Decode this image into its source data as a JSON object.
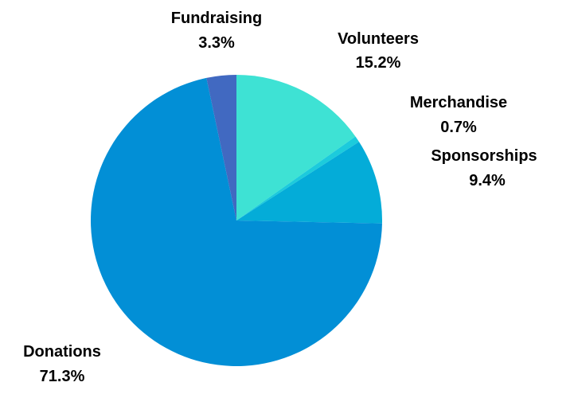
{
  "chart_data": {
    "type": "pie",
    "title": "",
    "legend": "none",
    "slices": [
      {
        "label": "Volunteers",
        "percent_label": "15.2%",
        "value": 15.2,
        "color": "#3ee2d4"
      },
      {
        "label": "Merchandise",
        "percent_label": "0.7%",
        "value": 0.7,
        "color": "#1ccbdc"
      },
      {
        "label": "Sponsorships",
        "percent_label": "9.4%",
        "value": 9.4,
        "color": "#04acd8"
      },
      {
        "label": "Donations",
        "percent_label": "71.3%",
        "value": 71.3,
        "color": "#028fd6"
      },
      {
        "label": "Fundraising",
        "percent_label": "3.3%",
        "value": 3.3,
        "color": "#4169c1"
      }
    ]
  }
}
